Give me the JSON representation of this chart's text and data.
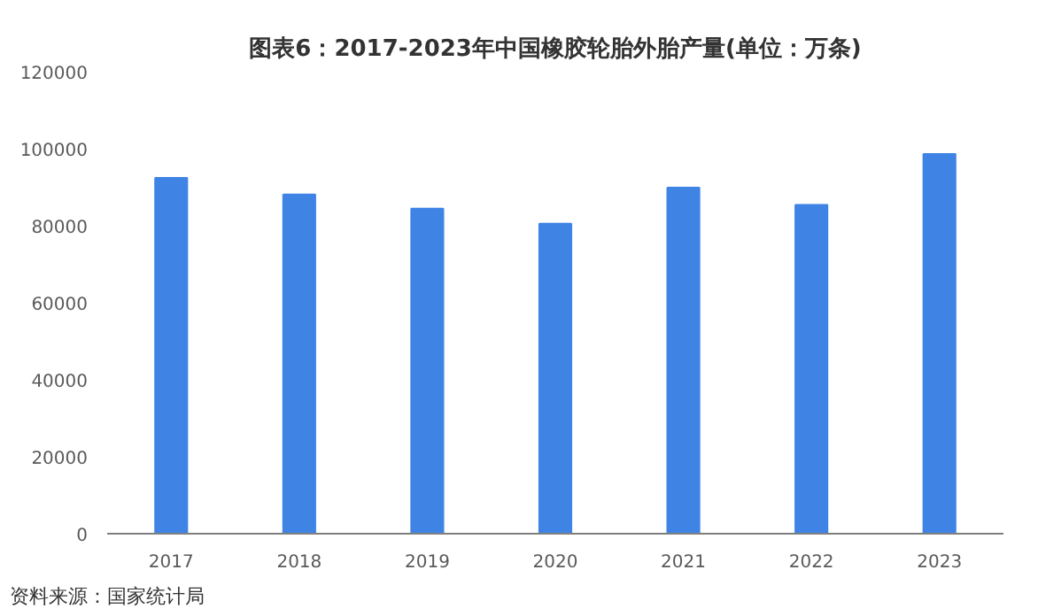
{
  "chart_data": {
    "type": "bar",
    "title": "图表6：2017-2023年中国橡胶轮胎外胎产量(单位：万条)",
    "categories": [
      "2017",
      "2018",
      "2019",
      "2020",
      "2021",
      "2022",
      "2023"
    ],
    "values": [
      92400,
      88100,
      84400,
      80500,
      89900,
      85400,
      98600
    ],
    "color": "#3f84e5",
    "ylim": [
      0,
      120000
    ],
    "yticks": [
      0,
      20000,
      40000,
      60000,
      80000,
      100000,
      120000
    ],
    "grid": false,
    "annotations": [
      "资料来源：国家统计局"
    ]
  }
}
